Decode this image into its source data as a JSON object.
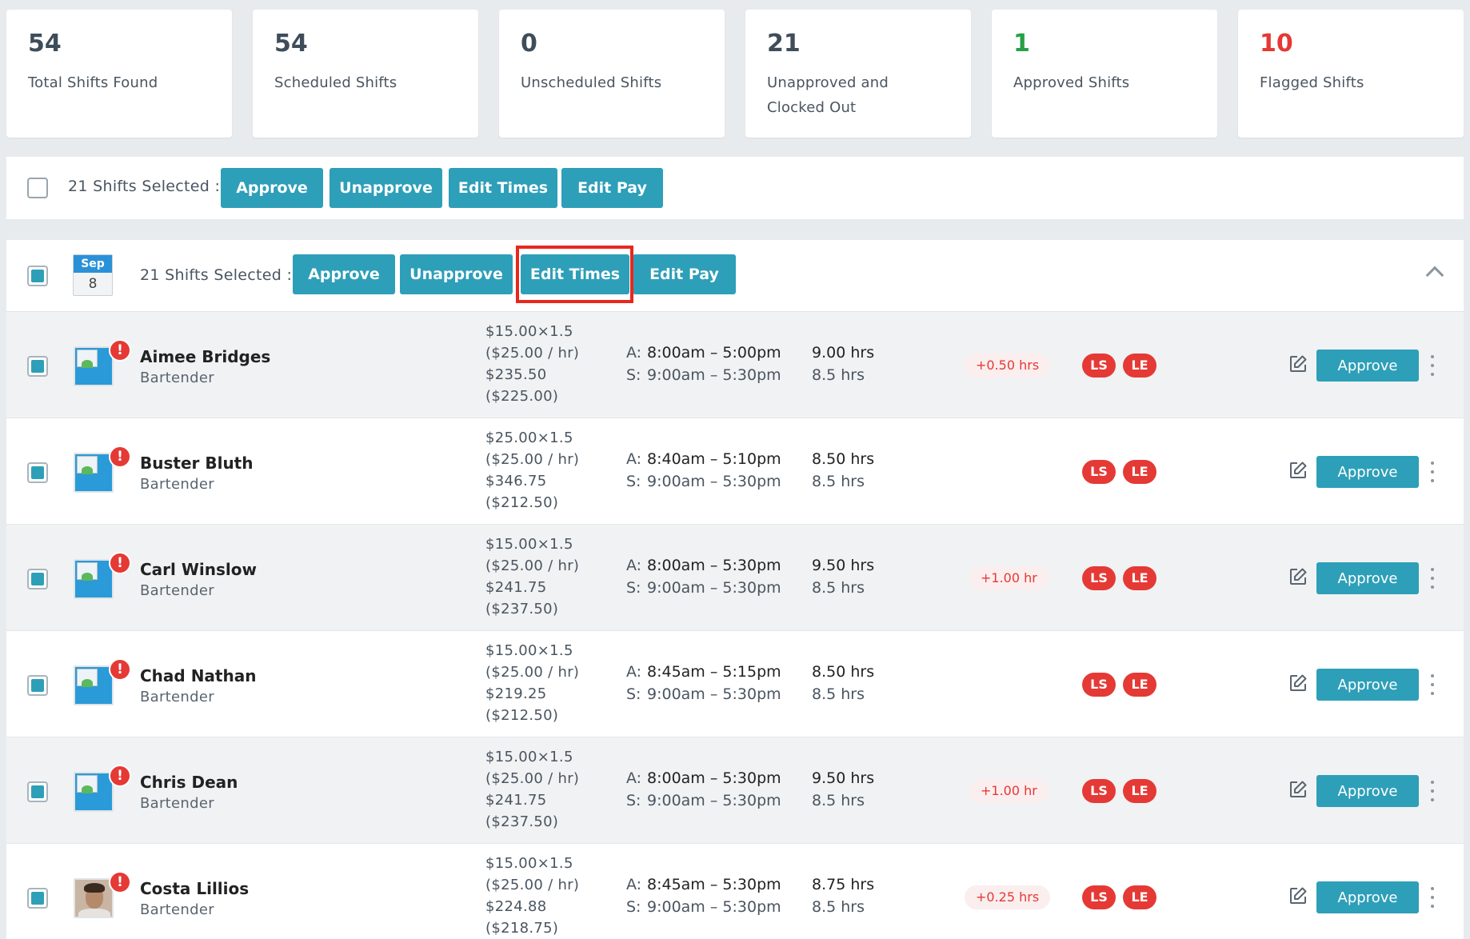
{
  "stats": [
    {
      "value": "54",
      "label": "Total Shifts Found",
      "color": "#3f4d5a"
    },
    {
      "value": "54",
      "label": "Scheduled Shifts",
      "color": "#3f4d5a"
    },
    {
      "value": "0",
      "label": "Unscheduled Shifts",
      "color": "#3f4d5a"
    },
    {
      "value": "21",
      "label": "Unapproved and Clocked Out",
      "color": "#3f4d5a"
    },
    {
      "value": "1",
      "label": "Approved Shifts",
      "color": "#27a046"
    },
    {
      "value": "10",
      "label": "Flagged Shifts",
      "color": "#e53935"
    }
  ],
  "bulk": {
    "selected_label": "21 Shifts Selected :",
    "approve": "Approve",
    "unapprove": "Unapprove",
    "edit_times": "Edit Times",
    "edit_pay": "Edit Pay"
  },
  "group": {
    "date_month": "Sep",
    "date_day": "8",
    "selected_label": "21 Shifts Selected :",
    "approve": "Approve",
    "unapprove": "Unapprove",
    "edit_times": "Edit Times",
    "edit_pay": "Edit Pay"
  },
  "shifts": [
    {
      "name": "Aimee Bridges",
      "role": "Bartender",
      "pay": [
        "$15.00×1.5",
        "($25.00 / hr)",
        "$235.50",
        "($225.00)"
      ],
      "actual": "8:00am – 5:00pm",
      "scheduled": "9:00am – 5:30pm",
      "actual_hrs": "9.00 hrs",
      "scheduled_hrs": "8.5 hrs",
      "diff": "+0.50 hrs",
      "tags": [
        "LS",
        "LE"
      ],
      "approve": "Approve",
      "photo": false
    },
    {
      "name": "Buster Bluth",
      "role": "Bartender",
      "pay": [
        "$25.00×1.5",
        "($25.00 / hr)",
        "$346.75",
        "($212.50)"
      ],
      "actual": "8:40am – 5:10pm",
      "scheduled": "9:00am – 5:30pm",
      "actual_hrs": "8.50 hrs",
      "scheduled_hrs": "8.5 hrs",
      "diff": "",
      "tags": [
        "LS",
        "LE"
      ],
      "approve": "Approve",
      "photo": false
    },
    {
      "name": "Carl Winslow",
      "role": "Bartender",
      "pay": [
        "$15.00×1.5",
        "($25.00 / hr)",
        "$241.75",
        "($237.50)"
      ],
      "actual": "8:00am – 5:30pm",
      "scheduled": "9:00am – 5:30pm",
      "actual_hrs": "9.50 hrs",
      "scheduled_hrs": "8.5 hrs",
      "diff": "+1.00 hr",
      "tags": [
        "LS",
        "LE"
      ],
      "approve": "Approve",
      "photo": false
    },
    {
      "name": "Chad Nathan",
      "role": "Bartender",
      "pay": [
        "$15.00×1.5",
        "($25.00 / hr)",
        "$219.25",
        "($212.50)"
      ],
      "actual": "8:45am – 5:15pm",
      "scheduled": "9:00am – 5:30pm",
      "actual_hrs": "8.50 hrs",
      "scheduled_hrs": "8.5 hrs",
      "diff": "",
      "tags": [
        "LS",
        "LE"
      ],
      "approve": "Approve",
      "photo": false
    },
    {
      "name": "Chris Dean",
      "role": "Bartender",
      "pay": [
        "$15.00×1.5",
        "($25.00 / hr)",
        "$241.75",
        "($237.50)"
      ],
      "actual": "8:00am – 5:30pm",
      "scheduled": "9:00am – 5:30pm",
      "actual_hrs": "9.50 hrs",
      "scheduled_hrs": "8.5 hrs",
      "diff": "+1.00 hr",
      "tags": [
        "LS",
        "LE"
      ],
      "approve": "Approve",
      "photo": false
    },
    {
      "name": "Costa Lillios",
      "role": "Bartender",
      "pay": [
        "$15.00×1.5",
        "($25.00 / hr)",
        "$224.88",
        "($218.75)"
      ],
      "actual": "8:45am – 5:30pm",
      "scheduled": "9:00am – 5:30pm",
      "actual_hrs": "8.75 hrs",
      "scheduled_hrs": "8.5 hrs",
      "diff": "+0.25 hrs",
      "tags": [
        "LS",
        "LE"
      ],
      "approve": "Approve",
      "photo": true
    }
  ],
  "labels": {
    "actual_prefix": "A:",
    "scheduled_prefix": "S:",
    "alert_glyph": "!"
  },
  "icons": {
    "row_edit": "edit-square-icon",
    "row_menu": "kebab-menu-icon",
    "collapse": "chevron-up-icon",
    "alert": "alert-icon",
    "avatar_placeholder": "image-placeholder-icon"
  },
  "colors": {
    "accent": "#2e9fb8",
    "danger": "#e53935",
    "success": "#27a046",
    "date_badge": "#2a91d8"
  }
}
